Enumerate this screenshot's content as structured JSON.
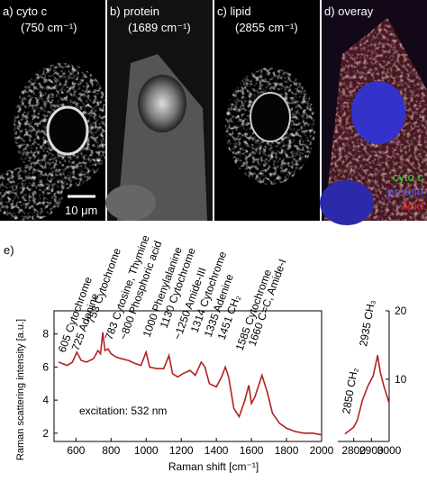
{
  "panels": [
    {
      "label": "a) cyto c",
      "sublabel": "(750 cm⁻¹)"
    },
    {
      "label": "b) protein",
      "sublabel": "(1689 cm⁻¹)"
    },
    {
      "label": "c) lipid",
      "sublabel": "(2855 cm⁻¹)"
    },
    {
      "label": "d) overay"
    }
  ],
  "scale_bar": "10 μm",
  "overlay_legend": [
    {
      "name": "cyto c",
      "color": "#33dd33"
    },
    {
      "name": "protein",
      "color": "#5555ff"
    },
    {
      "name": "lipid",
      "color": "#ee2222"
    }
  ],
  "figure_label": "e)",
  "chart_data": [
    {
      "type": "line",
      "ylabel": "Raman scattering intensity [a.u.]",
      "xlabel": "Raman shift [cm⁻¹]",
      "note": "excitation: 532 nm",
      "color": "#b22222",
      "x": [
        500,
        550,
        580,
        605,
        630,
        660,
        700,
        725,
        740,
        753,
        765,
        783,
        800,
        830,
        860,
        900,
        940,
        970,
        1000,
        1020,
        1060,
        1100,
        1130,
        1150,
        1180,
        1210,
        1250,
        1280,
        1314,
        1335,
        1360,
        1400,
        1430,
        1451,
        1470,
        1500,
        1530,
        1560,
        1585,
        1600,
        1620,
        1660,
        1690,
        1720,
        1760,
        1800,
        1850,
        1900,
        1950,
        2000
      ],
      "values": [
        6.3,
        6.1,
        6.3,
        6.9,
        6.4,
        6.3,
        6.5,
        7.0,
        6.8,
        8.1,
        7.0,
        7.1,
        6.8,
        6.6,
        6.5,
        6.4,
        6.2,
        6.1,
        6.9,
        6.0,
        5.9,
        5.9,
        6.7,
        5.6,
        5.4,
        5.6,
        5.8,
        5.5,
        6.3,
        6.0,
        5.0,
        4.8,
        5.4,
        6.0,
        5.4,
        3.5,
        3.0,
        3.9,
        4.9,
        3.8,
        4.2,
        5.5,
        4.5,
        3.2,
        2.6,
        2.3,
        2.1,
        2.0,
        2.0,
        1.9
      ],
      "xlim": [
        475,
        2000
      ],
      "xticks": [
        600,
        800,
        1000,
        1200,
        1400,
        1600,
        1800,
        2000
      ],
      "ylim": [
        1.5,
        9.4
      ],
      "yticks": [
        2,
        4,
        6,
        8
      ],
      "annotations": [
        "605 Cytochrome",
        "725 Adenine",
        "753 Cytochrome",
        "783 Cytosine, Thymine",
        "~800 Phosphoric acid",
        "1000 Phenylalanine",
        "1130 Cytochrome",
        "~1250 Amide-III",
        "1314 Cytochrome",
        "1335 Adenine",
        "1451 CH₂",
        "1585 Cytochrome",
        "1660 C=C, Amide-I"
      ]
    },
    {
      "type": "line",
      "color": "#b22222",
      "x": [
        2750,
        2800,
        2820,
        2850,
        2880,
        2910,
        2935,
        2950,
        2970,
        3000
      ],
      "values": [
        2.0,
        3,
        4,
        7,
        9,
        10.5,
        13.5,
        11,
        9,
        6.5
      ],
      "xlim": [
        2710,
        3000
      ],
      "xticks": [
        2800,
        2900,
        3000
      ],
      "ylim": [
        0.9,
        20
      ],
      "yticks": [
        10,
        20
      ],
      "annotations": [
        "2850 CH₂",
        "2935 CH₃"
      ]
    }
  ]
}
